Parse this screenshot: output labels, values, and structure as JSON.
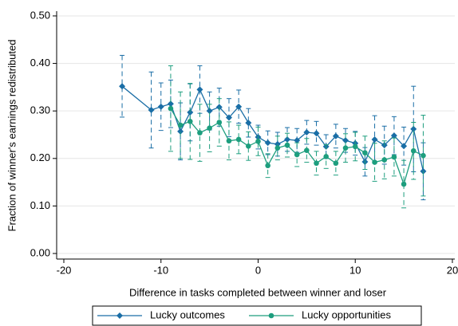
{
  "chart_data": {
    "type": "line_errorbar",
    "x_label": "Difference in tasks completed between winner and loser",
    "y_label": "Fraction of winner's earnings redistributed",
    "xlim": [
      -20.74,
      20.25
    ],
    "ylim": [
      -0.0117,
      0.51
    ],
    "xticks": [
      -20,
      -10,
      0,
      10,
      20
    ],
    "yticks": [
      {
        "value": 0,
        "label": "0.00"
      },
      {
        "value": 0.1,
        "label": "0.10"
      },
      {
        "value": 0.2,
        "label": "0.20"
      },
      {
        "value": 0.3,
        "label": "0.30"
      },
      {
        "value": 0.4,
        "label": "0.40"
      },
      {
        "value": 0.5,
        "label": "0.50"
      }
    ],
    "grid": true,
    "legend": "bottom",
    "series": [
      {
        "name": "Lucky outcomes",
        "color": "#1a6ea6",
        "marker": "diamond",
        "x": [
          -14,
          -11,
          -10,
          -9,
          -8,
          -7,
          -6,
          -5,
          -4,
          -3,
          -2,
          -1,
          0,
          1,
          2,
          3,
          4,
          5,
          6,
          7,
          8,
          9,
          10,
          11,
          12,
          13,
          14,
          15,
          16,
          17
        ],
        "values": [
          0.352,
          0.302,
          0.309,
          0.315,
          0.257,
          0.297,
          0.345,
          0.3,
          0.308,
          0.286,
          0.309,
          0.275,
          0.245,
          0.233,
          0.23,
          0.24,
          0.238,
          0.255,
          0.253,
          0.225,
          0.247,
          0.238,
          0.232,
          0.193,
          0.24,
          0.228,
          0.248,
          0.226,
          0.262,
          0.173
        ],
        "errors": [
          0.065,
          0.08,
          0.05,
          0.05,
          0.06,
          0.06,
          0.05,
          0.04,
          0.04,
          0.04,
          0.035,
          0.03,
          0.025,
          0.025,
          0.025,
          0.025,
          0.025,
          0.025,
          0.025,
          0.025,
          0.025,
          0.025,
          0.025,
          0.03,
          0.05,
          0.04,
          0.04,
          0.04,
          0.09,
          0.06
        ]
      },
      {
        "name": "Lucky opportunities",
        "color": "#1d9e7e",
        "marker": "circle",
        "x": [
          -9,
          -8,
          -7,
          -6,
          -5,
          -4,
          -3,
          -2,
          -1,
          0,
          1,
          2,
          3,
          4,
          5,
          6,
          7,
          8,
          9,
          10,
          11,
          12,
          13,
          14,
          15,
          16,
          17
        ],
        "values": [
          0.305,
          0.27,
          0.278,
          0.254,
          0.264,
          0.276,
          0.237,
          0.24,
          0.226,
          0.236,
          0.185,
          0.222,
          0.228,
          0.208,
          0.217,
          0.19,
          0.204,
          0.19,
          0.222,
          0.225,
          0.212,
          0.192,
          0.197,
          0.203,
          0.146,
          0.216,
          0.206
        ],
        "errors": [
          0.09,
          0.07,
          0.08,
          0.06,
          0.05,
          0.05,
          0.04,
          0.03,
          0.03,
          0.03,
          0.025,
          0.025,
          0.025,
          0.025,
          0.025,
          0.025,
          0.025,
          0.025,
          0.03,
          0.03,
          0.035,
          0.04,
          0.04,
          0.04,
          0.05,
          0.06,
          0.085
        ]
      }
    ]
  }
}
